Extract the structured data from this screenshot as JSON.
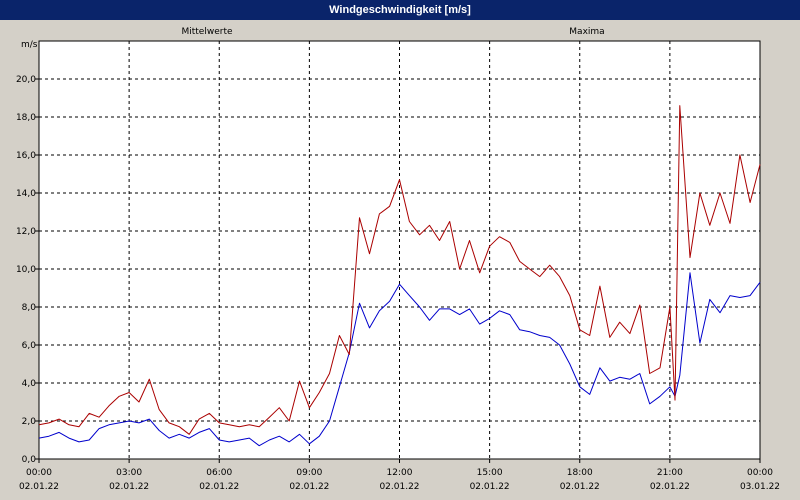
{
  "window_title": "Windgeschwindigkeit [m/s]",
  "chart_data": {
    "type": "line",
    "title": "Windgeschwindigkeit [m/s]",
    "ylabel": "m/s",
    "xlabel": "",
    "ylim": [
      0,
      22
    ],
    "xlim_hours": [
      0,
      24
    ],
    "grid": true,
    "legend_placement": "top",
    "yticks": [
      "0,0",
      "2,0",
      "4,0",
      "6,0",
      "8,0",
      "10,0",
      "12,0",
      "14,0",
      "16,0",
      "18,0",
      "20,0"
    ],
    "xticks": [
      {
        "time": "00:00",
        "date": "02.01.22"
      },
      {
        "time": "03:00",
        "date": "02.01.22"
      },
      {
        "time": "06:00",
        "date": "02.01.22"
      },
      {
        "time": "09:00",
        "date": "02.01.22"
      },
      {
        "time": "12:00",
        "date": "02.01.22"
      },
      {
        "time": "15:00",
        "date": "02.01.22"
      },
      {
        "time": "18:00",
        "date": "02.01.22"
      },
      {
        "time": "21:00",
        "date": "02.01.22"
      },
      {
        "time": "00:00",
        "date": "03.01.22"
      }
    ],
    "series": [
      {
        "name": "Mittelwerte",
        "color": "#0000cc",
        "x": [
          0,
          0.33,
          0.67,
          1,
          1.33,
          1.67,
          2,
          2.33,
          2.67,
          3,
          3.33,
          3.67,
          4,
          4.33,
          4.67,
          5,
          5.33,
          5.67,
          6,
          6.33,
          6.67,
          7,
          7.33,
          7.67,
          8,
          8.33,
          8.67,
          9,
          9.33,
          9.67,
          10,
          10.33,
          10.67,
          11,
          11.33,
          11.67,
          12,
          12.33,
          12.67,
          13,
          13.33,
          13.67,
          14,
          14.33,
          14.67,
          15,
          15.33,
          15.67,
          16,
          16.33,
          16.67,
          17,
          17.33,
          17.67,
          18,
          18.33,
          18.67,
          19,
          19.33,
          19.67,
          20,
          20.33,
          20.67,
          21,
          21.17,
          21.33,
          21.67,
          22,
          22.33,
          22.67,
          23,
          23.33,
          23.67,
          24
        ],
        "values": [
          1.1,
          1.2,
          1.4,
          1.1,
          0.9,
          1.0,
          1.6,
          1.8,
          1.9,
          2.0,
          1.9,
          2.1,
          1.5,
          1.1,
          1.3,
          1.1,
          1.4,
          1.6,
          1.0,
          0.9,
          1.0,
          1.1,
          0.7,
          1.0,
          1.2,
          0.9,
          1.3,
          0.8,
          1.2,
          2.0,
          3.8,
          5.6,
          8.2,
          6.9,
          7.8,
          8.3,
          9.2,
          8.6,
          8.0,
          7.3,
          7.9,
          7.9,
          7.6,
          7.9,
          7.1,
          7.4,
          7.8,
          7.6,
          6.8,
          6.7,
          6.5,
          6.4,
          6.0,
          5.0,
          3.8,
          3.4,
          4.8,
          4.1,
          4.3,
          4.2,
          4.5,
          2.9,
          3.3,
          3.8,
          3.3,
          4.4,
          9.8,
          6.1,
          8.4,
          7.7,
          8.6,
          8.5,
          8.6,
          9.3
        ]
      },
      {
        "name": "Maxima",
        "color": "#aa0000",
        "x": [
          0,
          0.33,
          0.67,
          1,
          1.33,
          1.67,
          2,
          2.33,
          2.67,
          3,
          3.33,
          3.67,
          4,
          4.33,
          4.67,
          5,
          5.33,
          5.67,
          6,
          6.33,
          6.67,
          7,
          7.33,
          7.67,
          8,
          8.33,
          8.67,
          9,
          9.33,
          9.67,
          10,
          10.33,
          10.67,
          11,
          11.33,
          11.67,
          12,
          12.33,
          12.67,
          13,
          13.33,
          13.67,
          14,
          14.33,
          14.67,
          15,
          15.33,
          15.67,
          16,
          16.33,
          16.67,
          17,
          17.33,
          17.67,
          18,
          18.33,
          18.67,
          19,
          19.33,
          19.67,
          20,
          20.33,
          20.67,
          21,
          21.17,
          21.33,
          21.67,
          22,
          22.33,
          22.67,
          23,
          23.33,
          23.67,
          24
        ],
        "values": [
          1.8,
          1.9,
          2.1,
          1.8,
          1.7,
          2.4,
          2.2,
          2.8,
          3.3,
          3.5,
          3.0,
          4.2,
          2.6,
          1.9,
          1.7,
          1.3,
          2.1,
          2.4,
          1.9,
          1.8,
          1.7,
          1.8,
          1.7,
          2.2,
          2.7,
          2.0,
          4.1,
          2.7,
          3.5,
          4.5,
          6.5,
          5.5,
          12.7,
          10.8,
          12.9,
          13.3,
          14.7,
          12.5,
          11.8,
          12.3,
          11.5,
          12.5,
          10.0,
          11.5,
          9.8,
          11.2,
          11.7,
          11.4,
          10.4,
          10.0,
          9.6,
          10.2,
          9.6,
          8.6,
          6.8,
          6.5,
          9.1,
          6.4,
          7.2,
          6.6,
          8.1,
          4.5,
          4.8,
          8.0,
          3.1,
          18.6,
          10.6,
          14.0,
          12.3,
          14.0,
          12.4,
          16.0,
          13.5,
          15.5
        ]
      }
    ]
  }
}
